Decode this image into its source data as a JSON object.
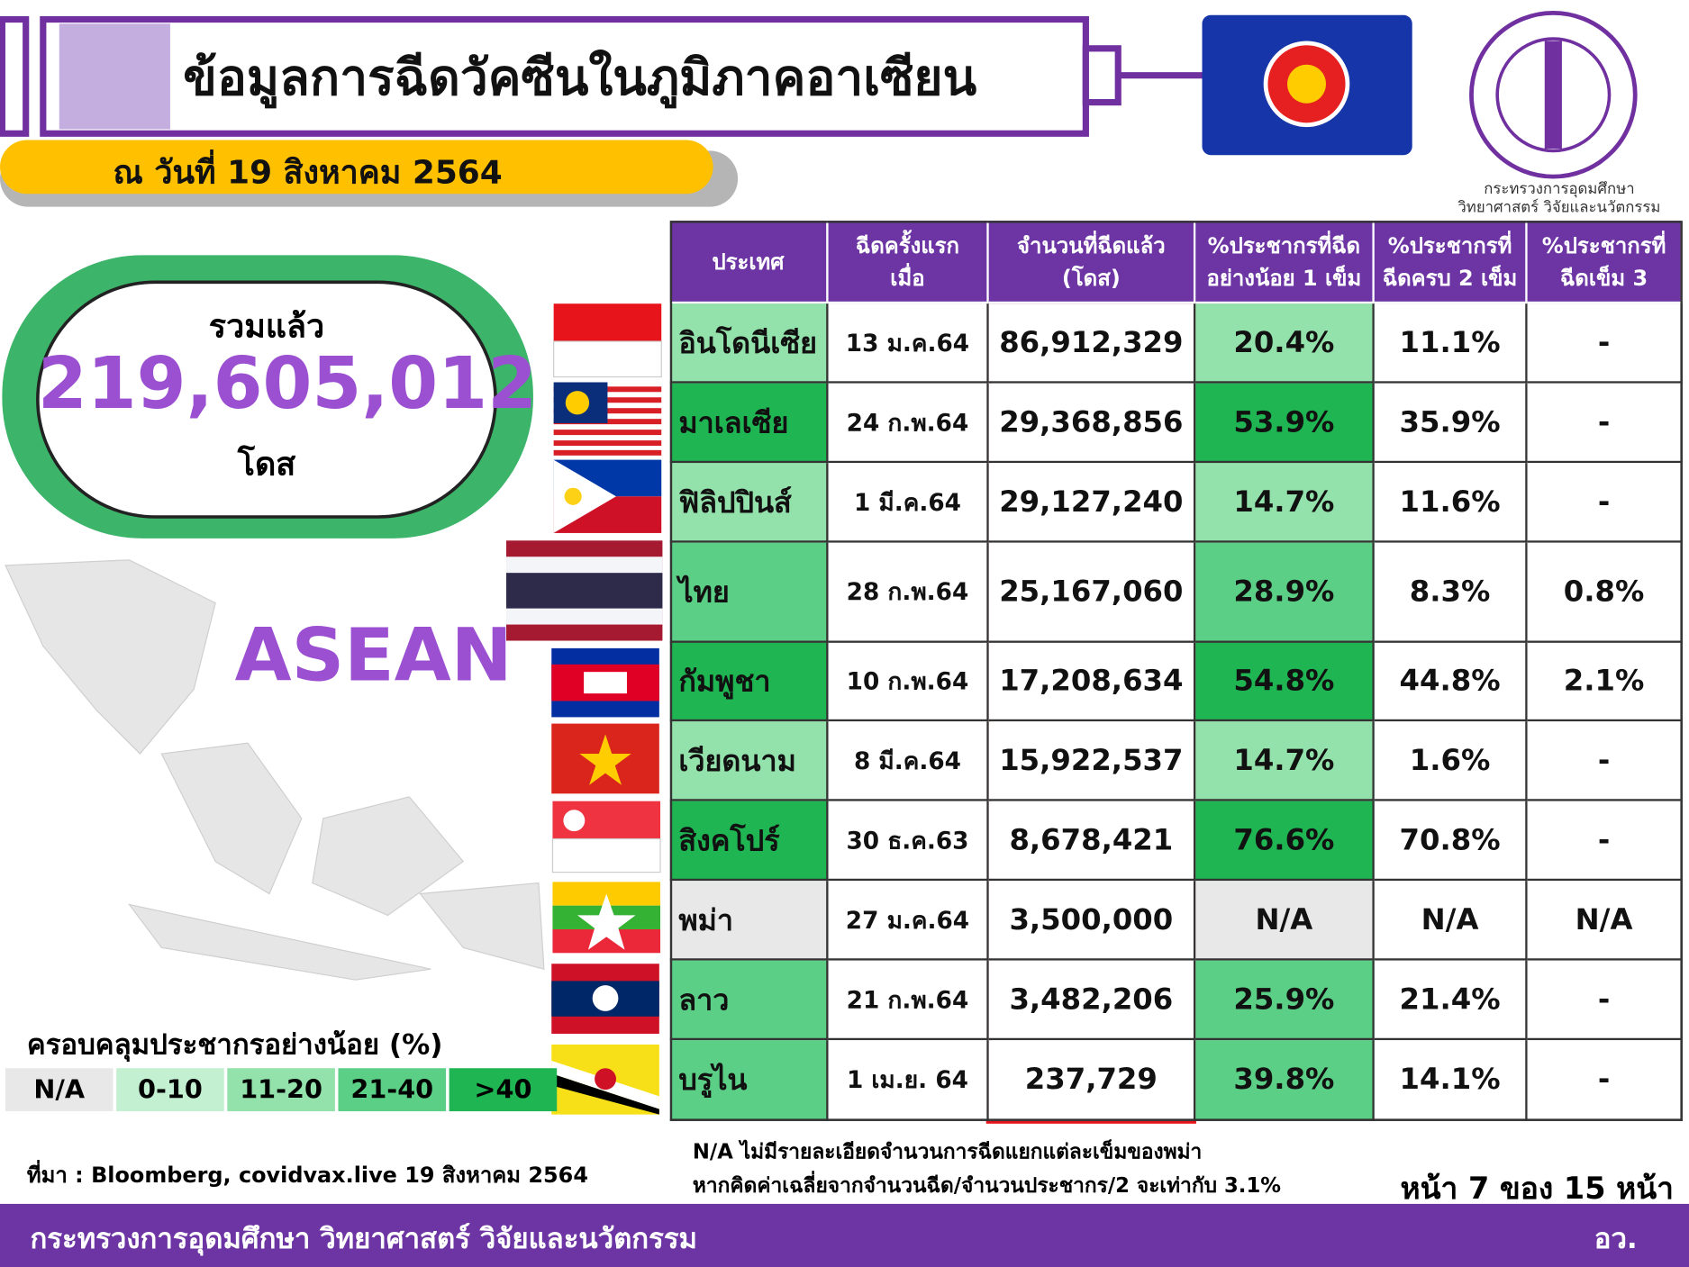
{
  "header": {
    "title": "ข้อมูลการฉีดวัคซีนในภูมิภาคอาเซียน",
    "date": "ณ วันที่ 19 สิงหาคม 2564",
    "logo_caption": [
      "กระทรวงการอุดมศึกษา",
      "วิทยาศาสตร์ วิจัยและนวัตกรรม"
    ]
  },
  "total": {
    "label": "รวมแล้ว",
    "value": "219,605,012",
    "unit": "โดส"
  },
  "map_label": "ASEAN",
  "legend": {
    "title": "ครอบคลุมประชากรอย่างน้อย (%)",
    "items": [
      {
        "label": "N/A",
        "color": "#e8e8e8"
      },
      {
        "label": "0-10",
        "color": "#c3f0d0"
      },
      {
        "label": "11-20",
        "color": "#93e1ab"
      },
      {
        "label": "21-40",
        "color": "#5ccf87"
      },
      {
        "label": ">40",
        "color": "#1fb552"
      }
    ]
  },
  "table": {
    "columns": [
      "ประเทศ",
      "ฉีดครั้งแรก\nเมื่อ",
      "จำนวนที่ฉีดแล้ว\n(โดส)",
      "%ประชากรที่ฉีด\nอย่างน้อย 1 เข็ม",
      "%ประชากรที่\nฉีดครบ 2 เข็ม",
      "%ประชากรที่\nฉีดเข็ม 3"
    ],
    "rows": [
      {
        "cells": [
          "อินโดนีเซีย",
          "13 ม.ค.64",
          "86,912,329",
          "20.4%",
          "11.1%",
          "-"
        ],
        "color": "#93e1ab"
      },
      {
        "cells": [
          "มาเลเซีย",
          "24 ก.พ.64",
          "29,368,856",
          "53.9%",
          "35.9%",
          "-"
        ],
        "color": "#1fb552"
      },
      {
        "cells": [
          "ฟิลิปปินส์",
          "1 มี.ค.64",
          "29,127,240",
          "14.7%",
          "11.6%",
          "-"
        ],
        "color": "#93e1ab"
      },
      {
        "cells": [
          "ไทย",
          "28 ก.พ.64",
          "25,167,060",
          "28.9%",
          "8.3%",
          "0.8%"
        ],
        "color": "#5ccf87"
      },
      {
        "cells": [
          "กัมพูชา",
          "10 ก.พ.64",
          "17,208,634",
          "54.8%",
          "44.8%",
          "2.1%"
        ],
        "color": "#1fb552"
      },
      {
        "cells": [
          "เวียดนาม",
          "8 มี.ค.64",
          "15,922,537",
          "14.7%",
          "1.6%",
          "-"
        ],
        "color": "#93e1ab"
      },
      {
        "cells": [
          "สิงคโปร์",
          "30 ธ.ค.63",
          "8,678,421",
          "76.6%",
          "70.8%",
          "-"
        ],
        "color": "#1fb552"
      },
      {
        "cells": [
          "พม่า",
          "27 ม.ค.64",
          "3,500,000",
          "N/A",
          "N/A",
          "N/A"
        ],
        "color": "#e8e8e8"
      },
      {
        "cells": [
          "ลาว",
          "21 ก.พ.64",
          "3,482,206",
          "25.9%",
          "21.4%",
          "-"
        ],
        "color": "#5ccf87"
      },
      {
        "cells": [
          "บรูไน",
          "1 เม.ย. 64",
          "237,729",
          "39.8%",
          "14.1%",
          "-"
        ],
        "color": "#5ccf87"
      }
    ]
  },
  "source": "ที่มา : Bloomberg, covidvax.live 19 สิงหาคม 2564",
  "note": [
    "N/A ไม่มีรายละเอียดจำนวนการฉีดแยกแต่ละเข็มของพม่า",
    "หากคิดค่าเฉลี่ยจากจำนวนฉีด/จำนวนประชากร/2 จะเท่ากับ 3.1%"
  ],
  "page": "หน้า 7 ของ 15 หน้า",
  "footer": {
    "ministry": "กระทรวงการอุดมศึกษา วิทยาศาสตร์ วิจัยและนวัตกรรม",
    "abbr": "อว."
  }
}
